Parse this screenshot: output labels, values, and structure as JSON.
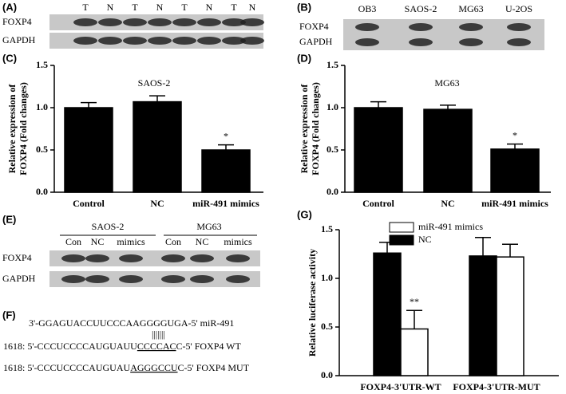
{
  "panels": {
    "a": {
      "label": "(A)",
      "lanes": [
        "T",
        "N",
        "T",
        "N",
        "T",
        "N",
        "T",
        "N"
      ],
      "rows": [
        "FOXP4",
        "GAPDH"
      ]
    },
    "b": {
      "label": "(B)",
      "lanes": [
        "OB3",
        "SAOS-2",
        "MG63",
        "U-2OS"
      ],
      "rows": [
        "FOXP4",
        "GAPDH"
      ]
    },
    "c": {
      "label": "(C)"
    },
    "d": {
      "label": "(D)"
    },
    "e": {
      "label": "(E)",
      "groups": [
        "SAOS-2",
        "MG63"
      ],
      "lanes": [
        "Con",
        "NC",
        "mimics",
        "Con",
        "NC",
        "mimics"
      ],
      "rows": [
        "FOXP4",
        "GAPDH"
      ]
    },
    "f": {
      "label": "(F)",
      "mirna": "3'-GGAGUACCUUCCCAAGGGGUGA-5'  miR-491",
      "pairs": "|||||||",
      "wt": [
        "1618: 5'-CCCUCCCCAUGUAUU",
        "CCCCAC",
        "C-5' FOXP4 WT"
      ],
      "mut": [
        "1618: 5'-CCCUCCCCAUGUAU",
        "AGGGCCU",
        "C-5' FOXP4 MUT"
      ]
    },
    "g": {
      "label": "(G)"
    }
  },
  "chart_data": [
    {
      "type": "bar",
      "title": "SAOS-2",
      "ylabel": [
        "Relative expression of",
        "FOXP4 (Fold changes)"
      ],
      "categories": [
        "Control",
        "NC",
        "miR-491 mimics"
      ],
      "values": [
        1.0,
        1.07,
        0.5
      ],
      "errors": [
        0.06,
        0.07,
        0.06
      ],
      "significance": [
        null,
        null,
        "*"
      ],
      "color": "#000000",
      "ylim": [
        0,
        1.5
      ],
      "yticks": [
        {
          "value": 0,
          "label": "0.0"
        },
        {
          "value": 0.5,
          "label": "0.5"
        },
        {
          "value": 1,
          "label": "1.0"
        },
        {
          "value": 1.5,
          "label": "1.5"
        }
      ]
    },
    {
      "type": "bar",
      "title": "MG63",
      "ylabel": [
        "Relative expression of",
        "FOXP4 (Fold changes)"
      ],
      "categories": [
        "Control",
        "NC",
        "miR-491 mimics"
      ],
      "values": [
        1.0,
        0.98,
        0.51
      ],
      "errors": [
        0.07,
        0.05,
        0.06
      ],
      "significance": [
        null,
        null,
        "*"
      ],
      "color": "#000000",
      "ylim": [
        0,
        1.5
      ],
      "yticks": [
        {
          "value": 0,
          "label": "0.0"
        },
        {
          "value": 0.5,
          "label": "0.5"
        },
        {
          "value": 1,
          "label": "1.0"
        },
        {
          "value": 1.5,
          "label": "1.5"
        }
      ]
    },
    {
      "type": "grouped-bar",
      "ylabel": "Relative luciferase activity",
      "categories": [
        "FOXP4-3'UTR-WT",
        "FOXP4-3'UTR-MUT"
      ],
      "series": [
        {
          "name": "NC",
          "color": "#000000",
          "values": [
            1.26,
            1.23
          ],
          "errors": [
            0.11,
            0.19
          ],
          "significance": [
            null,
            null
          ]
        },
        {
          "name": "miR-491 mimics",
          "color": "#ffffff",
          "values": [
            0.48,
            1.22
          ],
          "errors": [
            0.19,
            0.13
          ],
          "significance": [
            "**",
            null
          ]
        }
      ],
      "ylim": [
        0,
        1.5
      ],
      "yticks": [
        {
          "value": 0,
          "label": "0.0"
        },
        {
          "value": 0.5,
          "label": "0.5"
        },
        {
          "value": 1,
          "label": "1.0"
        },
        {
          "value": 1.5,
          "label": "1.5"
        }
      ]
    }
  ]
}
